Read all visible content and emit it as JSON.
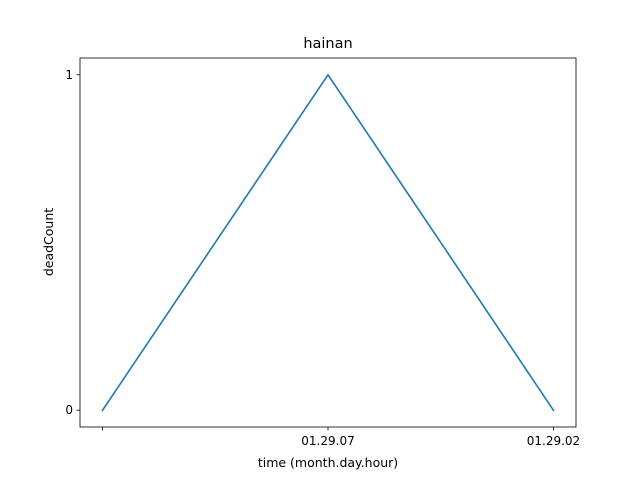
{
  "chart_data": {
    "type": "line",
    "title": "hainan",
    "xlabel": "time (month.day.hour)",
    "ylabel": "deadCount",
    "x": [
      0,
      1,
      2
    ],
    "x_tick_labels": [
      "",
      "01.29.07",
      "01.29.02"
    ],
    "y_ticks": [
      0,
      1
    ],
    "ylim": [
      -0.05,
      1.05
    ],
    "grid": false,
    "series": [
      {
        "values": [
          0,
          1,
          0
        ],
        "color": "#1f77b4"
      }
    ]
  }
}
